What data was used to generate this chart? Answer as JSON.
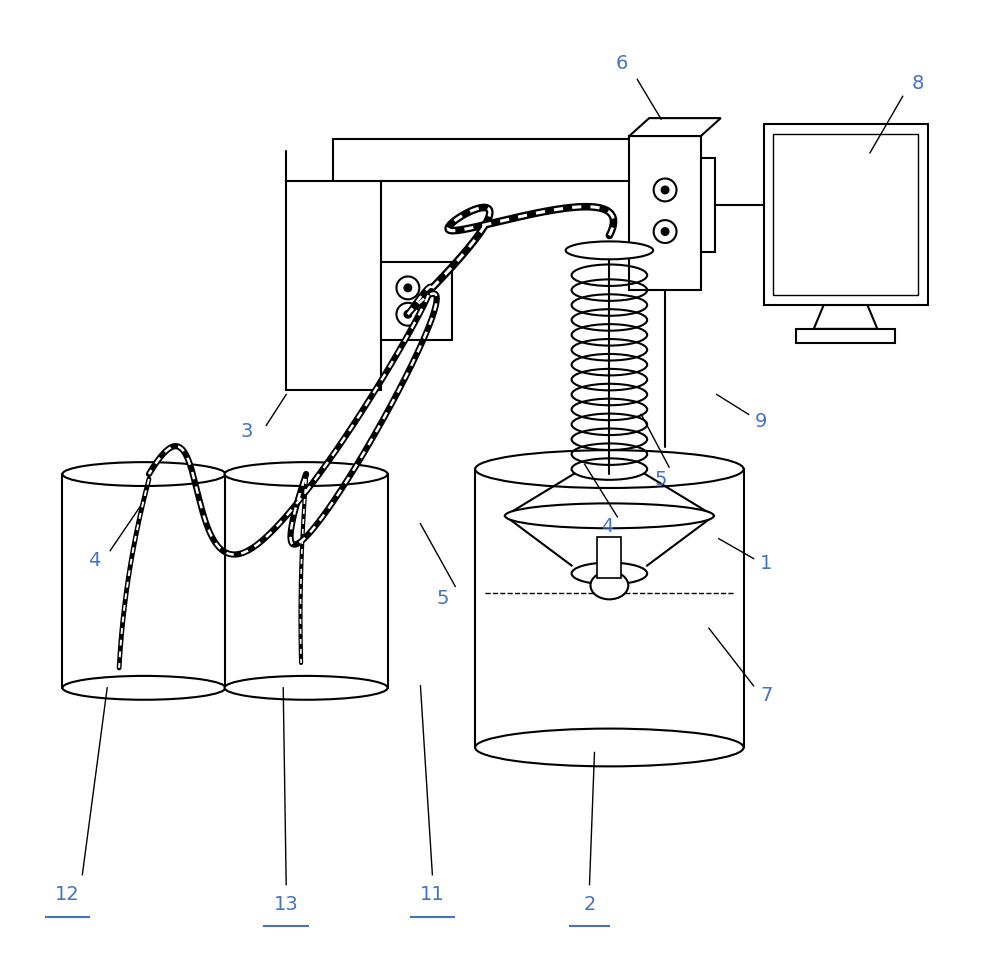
{
  "bg_color": "#ffffff",
  "line_color": "#000000",
  "label_color": "#4472c4",
  "figsize": [
    10.0,
    9.69
  ],
  "dpi": 100
}
